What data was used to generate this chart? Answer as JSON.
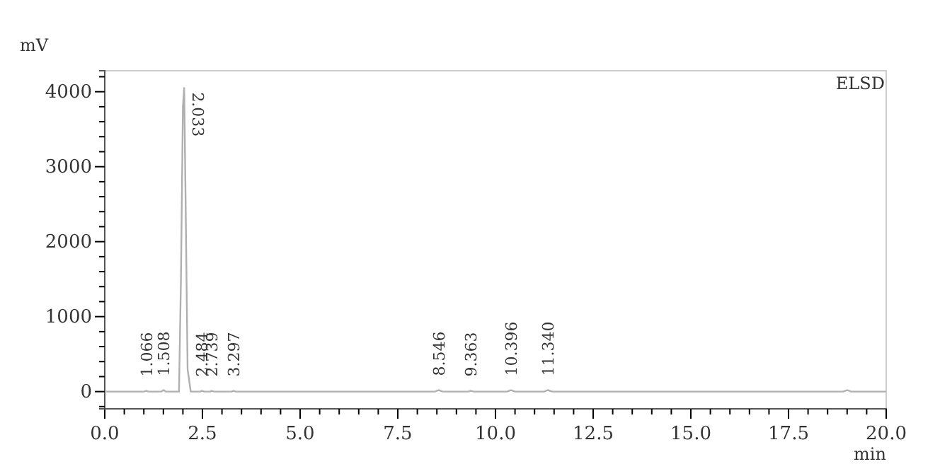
{
  "chart_data": {
    "type": "line",
    "title": "ELSD",
    "xlabel": "min",
    "ylabel": "mV",
    "xlim": [
      0,
      20
    ],
    "ylim": [
      -230,
      4280
    ],
    "xticks": [
      {
        "value": 0,
        "label": "0.0"
      },
      {
        "value": 0.5,
        "label": null
      },
      {
        "value": 1,
        "label": null
      },
      {
        "value": 1.5,
        "label": null
      },
      {
        "value": 2,
        "label": null
      },
      {
        "value": 2.5,
        "label": "2.5"
      },
      {
        "value": 3,
        "label": null
      },
      {
        "value": 3.5,
        "label": null
      },
      {
        "value": 4,
        "label": null
      },
      {
        "value": 4.5,
        "label": null
      },
      {
        "value": 5,
        "label": "5.0"
      },
      {
        "value": 5.5,
        "label": null
      },
      {
        "value": 6,
        "label": null
      },
      {
        "value": 6.5,
        "label": null
      },
      {
        "value": 7,
        "label": null
      },
      {
        "value": 7.5,
        "label": "7.5"
      },
      {
        "value": 8,
        "label": null
      },
      {
        "value": 8.5,
        "label": null
      },
      {
        "value": 9,
        "label": null
      },
      {
        "value": 9.5,
        "label": null
      },
      {
        "value": 10,
        "label": "10.0"
      },
      {
        "value": 10.5,
        "label": null
      },
      {
        "value": 11,
        "label": null
      },
      {
        "value": 11.5,
        "label": null
      },
      {
        "value": 12,
        "label": null
      },
      {
        "value": 12.5,
        "label": "12.5"
      },
      {
        "value": 13,
        "label": null
      },
      {
        "value": 13.5,
        "label": null
      },
      {
        "value": 14,
        "label": null
      },
      {
        "value": 14.5,
        "label": null
      },
      {
        "value": 15,
        "label": "15.0"
      },
      {
        "value": 15.5,
        "label": null
      },
      {
        "value": 16,
        "label": null
      },
      {
        "value": 16.5,
        "label": null
      },
      {
        "value": 17,
        "label": null
      },
      {
        "value": 17.5,
        "label": "17.5"
      },
      {
        "value": 18,
        "label": null
      },
      {
        "value": 18.5,
        "label": null
      },
      {
        "value": 19,
        "label": null
      },
      {
        "value": 19.5,
        "label": null
      },
      {
        "value": 20,
        "label": "20.0"
      }
    ],
    "yticks": [
      {
        "value": -200,
        "label": null
      },
      0,
      {
        "value": 200,
        "label": null
      },
      {
        "value": 400,
        "label": null
      },
      {
        "value": 600,
        "label": null
      },
      {
        "value": 800,
        "label": null
      },
      1000,
      {
        "value": 1200,
        "label": null
      },
      {
        "value": 1400,
        "label": null
      },
      {
        "value": 1600,
        "label": null
      },
      {
        "value": 1800,
        "label": null
      },
      2000,
      {
        "value": 2200,
        "label": null
      },
      {
        "value": 2400,
        "label": null
      },
      {
        "value": 2600,
        "label": null
      },
      {
        "value": 2800,
        "label": null
      },
      3000,
      {
        "value": 3200,
        "label": null
      },
      {
        "value": 3400,
        "label": null
      },
      {
        "value": 3600,
        "label": null
      },
      {
        "value": 3800,
        "label": null
      },
      4000,
      {
        "value": 4200,
        "label": null
      }
    ],
    "grid": false,
    "marker": "none",
    "line_style": "solid",
    "series": [
      {
        "color": "#b0b0b0",
        "x": [
          0,
          1.0,
          1.066,
          1.12,
          1.45,
          1.508,
          1.56,
          1.9,
          1.95,
          2.0,
          2.033,
          2.07,
          2.12,
          2.2,
          2.45,
          2.484,
          2.55,
          2.7,
          2.739,
          2.8,
          3.25,
          3.297,
          3.35,
          8.45,
          8.546,
          8.65,
          9.3,
          9.363,
          9.45,
          10.3,
          10.396,
          10.5,
          11.25,
          11.34,
          11.45,
          18.9,
          19.0,
          19.1,
          20
        ],
        "values": [
          0,
          0,
          10,
          0,
          0,
          20,
          0,
          0,
          1500,
          3800,
          4050,
          2500,
          300,
          0,
          0,
          10,
          0,
          0,
          10,
          0,
          0,
          10,
          0,
          0,
          20,
          0,
          0,
          10,
          0,
          0,
          20,
          0,
          0,
          20,
          0,
          0,
          20,
          0,
          0
        ]
      }
    ],
    "annotations": [
      {
        "text": "1.066",
        "x": 1.066,
        "y": 10
      },
      {
        "text": "1.508",
        "x": 1.508,
        "y": 20
      },
      {
        "text": "2.033",
        "x": 2.033,
        "y": 4050
      },
      {
        "text": "2.484",
        "x": 2.484,
        "y": 10
      },
      {
        "text": "2.739",
        "x": 2.739,
        "y": 10
      },
      {
        "text": "3.297",
        "x": 3.297,
        "y": 10
      },
      {
        "text": "8.546",
        "x": 8.546,
        "y": 20
      },
      {
        "text": "9.363",
        "x": 9.363,
        "y": 10
      },
      {
        "text": "10.396",
        "x": 10.396,
        "y": 20
      },
      {
        "text": "11.340",
        "x": 11.34,
        "y": 20
      }
    ]
  }
}
